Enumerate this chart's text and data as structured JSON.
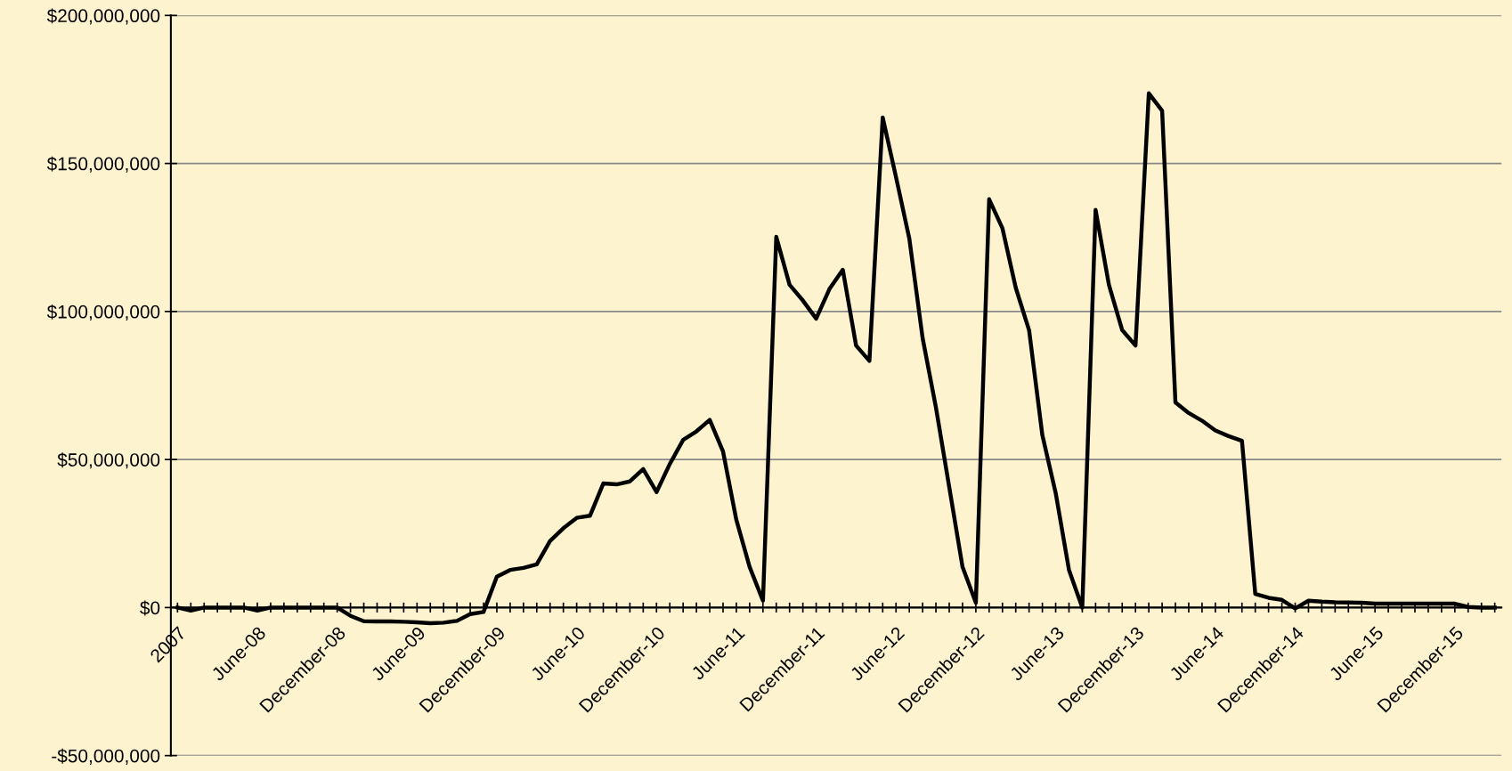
{
  "chart_data": {
    "type": "line",
    "categories": [
      "2007",
      null,
      null,
      null,
      null,
      null,
      "June-08",
      null,
      null,
      null,
      null,
      null,
      "December-08",
      null,
      null,
      null,
      null,
      null,
      "June-09",
      null,
      null,
      null,
      null,
      null,
      "December-09",
      null,
      null,
      null,
      null,
      null,
      "June-10",
      null,
      null,
      null,
      null,
      null,
      "December-10",
      null,
      null,
      null,
      null,
      null,
      "June-11",
      null,
      null,
      null,
      null,
      null,
      "December-11",
      null,
      null,
      null,
      null,
      null,
      "June-12",
      null,
      null,
      null,
      null,
      null,
      "December-12",
      null,
      null,
      null,
      null,
      null,
      "June-13",
      null,
      null,
      null,
      null,
      null,
      "December-13",
      null,
      null,
      null,
      null,
      null,
      "June-14",
      null,
      null,
      null,
      null,
      null,
      "December-14",
      null,
      null,
      null,
      null,
      null,
      "June-15",
      null,
      null,
      null,
      null,
      null,
      "December-15",
      null,
      null,
      null
    ],
    "series": [
      {
        "color": "#000000",
        "values": [
          0,
          -1000000,
          0,
          0,
          0,
          0,
          -1000000,
          0,
          0,
          0,
          0,
          0,
          0,
          -2800000,
          -4600000,
          -4700000,
          -4700000,
          -4800000,
          -5000000,
          -5300000,
          -5100000,
          -4500000,
          -2200000,
          -1500000,
          10400000,
          12700000,
          13400000,
          14600000,
          22500000,
          26800000,
          30300000,
          31000000,
          41900000,
          41600000,
          42600000,
          46800000,
          39000000,
          48500000,
          56600000,
          59500000,
          63400000,
          52700000,
          29600000,
          13700000,
          2300000,
          125200000,
          109000000,
          103700000,
          97600000,
          107600000,
          114100000,
          88500000,
          83300000,
          165500000,
          145400000,
          124600000,
          91000000,
          67600000,
          40700000,
          13700000,
          1600000,
          137900000,
          128100000,
          108000000,
          93700000,
          58200000,
          38700000,
          12700000,
          0,
          134300000,
          109000000,
          93700000,
          88500000,
          173700000,
          167800000,
          69300000,
          65700000,
          63100000,
          59800000,
          57900000,
          56300000,
          4600000,
          3300000,
          2600000,
          -300000,
          2300000,
          2000000,
          1800000,
          1700000,
          1600000,
          1300000,
          1300000,
          1300000,
          1300000,
          1300000,
          1300000,
          1300000,
          200000,
          0,
          0
        ]
      }
    ],
    "ylim": [
      -50000000,
      200000000
    ],
    "yticks": [
      {
        "value": -50000000,
        "label": "-$50,000,000"
      },
      {
        "value": 0,
        "label": "$0"
      },
      {
        "value": 50000000,
        "label": "$50,000,000"
      },
      {
        "value": 100000000,
        "label": "$100,000,000"
      },
      {
        "value": 150000000,
        "label": "$150,000,000"
      },
      {
        "value": 200000000,
        "label": "$200,000,000"
      }
    ],
    "grid": "y",
    "marker": "none",
    "line_style": "solid"
  }
}
